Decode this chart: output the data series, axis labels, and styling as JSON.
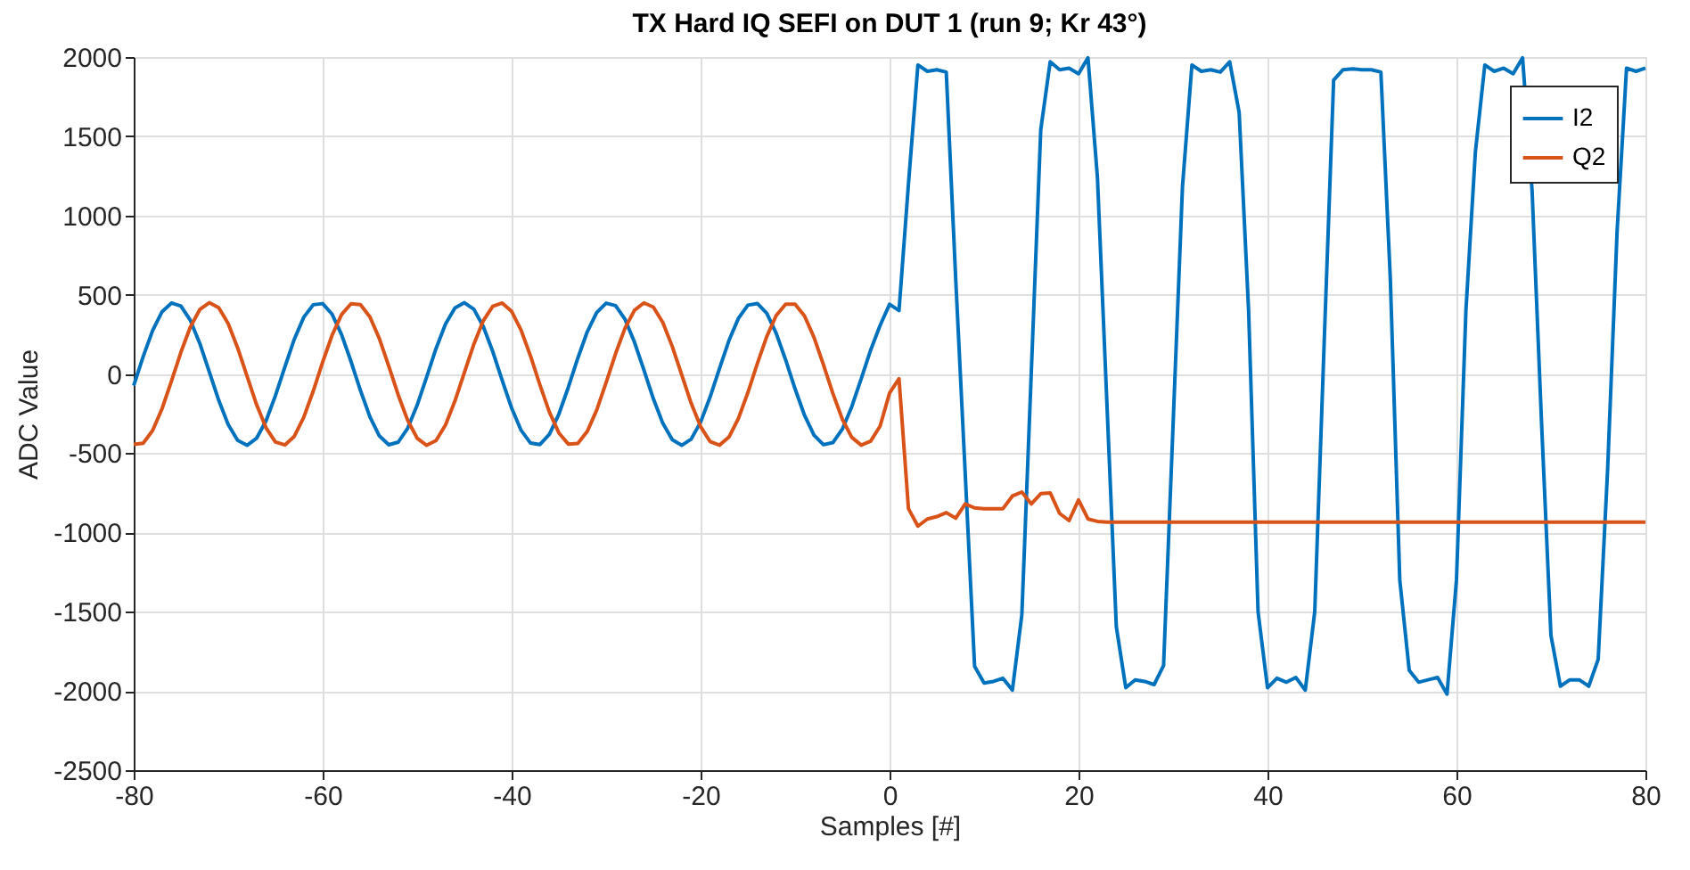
{
  "chart_data": {
    "type": "line",
    "title": "TX Hard IQ SEFI on DUT 1 (run 9; Kr 43°)",
    "xlabel": "Samples [#]",
    "ylabel": "ADC Value",
    "x": [
      -80,
      -79,
      -78,
      -77,
      -76,
      -75,
      -74,
      -73,
      -72,
      -71,
      -70,
      -69,
      -68,
      -67,
      -66,
      -65,
      -64,
      -63,
      -62,
      -61,
      -60,
      -59,
      -58,
      -57,
      -56,
      -55,
      -54,
      -53,
      -52,
      -51,
      -50,
      -49,
      -48,
      -47,
      -46,
      -45,
      -44,
      -43,
      -42,
      -41,
      -40,
      -39,
      -38,
      -37,
      -36,
      -35,
      -34,
      -33,
      -32,
      -31,
      -30,
      -29,
      -28,
      -27,
      -26,
      -25,
      -24,
      -23,
      -22,
      -21,
      -20,
      -19,
      -18,
      -17,
      -16,
      -15,
      -14,
      -13,
      -12,
      -11,
      -10,
      -9,
      -8,
      -7,
      -6,
      -5,
      -4,
      -3,
      -2,
      -1,
      0,
      1,
      2,
      3,
      4,
      5,
      6,
      7,
      8,
      9,
      10,
      11,
      12,
      13,
      14,
      15,
      16,
      17,
      18,
      19,
      20,
      21,
      22,
      23,
      24,
      25,
      26,
      27,
      28,
      29,
      30,
      31,
      32,
      33,
      34,
      35,
      36,
      37,
      38,
      39,
      40,
      41,
      42,
      43,
      44,
      45,
      46,
      47,
      48,
      49,
      50,
      51,
      52,
      53,
      54,
      55,
      56,
      57,
      58,
      59,
      60,
      61,
      62,
      63,
      64,
      65,
      66,
      67,
      68,
      69,
      70,
      71,
      72,
      73,
      74,
      75,
      76,
      77,
      78,
      79,
      80
    ],
    "series": [
      {
        "name": "I2",
        "color": "#0072bd",
        "values": [
          -74,
          109,
          274,
          393,
          448,
          428,
          338,
          192,
          14,
          -166,
          -319,
          -419,
          -450,
          -406,
          -296,
          -137,
          45,
          220,
          358,
          437,
          444,
          377,
          249,
          79,
          -104,
          -270,
          -391,
          -447,
          -430,
          -342,
          -197,
          -20,
          161,
          315,
          417,
          450,
          409,
          300,
          142,
          -40,
          -215,
          -355,
          -436,
          -445,
          -380,
          -253,
          -84,
          99,
          266,
          388,
          447,
          431,
          345,
          201,
          25,
          -156,
          -311,
          -415,
          -450,
          -411,
          -304,
          -146,
          35,
          211,
          351,
          434,
          445,
          383,
          257,
          89,
          -94,
          -261,
          -386,
          -446,
          -433,
          -348,
          -206,
          -30,
          151,
          307,
          440,
          400,
          1200,
          1950,
          1910,
          1920,
          1905,
          600,
          -620,
          -1845,
          -1950,
          -1940,
          -1920,
          -1995,
          -1520,
          10,
          1540,
          1970,
          1920,
          1930,
          1895,
          1995,
          1240,
          -180,
          -1595,
          -1980,
          -1930,
          -1940,
          -1960,
          -1840,
          -330,
          1180,
          1950,
          1910,
          1920,
          1905,
          1970,
          1650,
          400,
          -1500,
          -1980,
          -1920,
          -1945,
          -1915,
          -1995,
          -1500,
          200,
          1855,
          1920,
          1925,
          1920,
          1920,
          1905,
          600,
          -1300,
          -1870,
          -1945,
          -1930,
          -1915,
          -2020,
          -1300,
          400,
          1400,
          1950,
          1910,
          1930,
          1895,
          1995,
          1160,
          -300,
          -1650,
          -1970,
          -1930,
          -1930,
          -1970,
          -1800,
          -600,
          900,
          1930,
          1910,
          1930
        ]
      },
      {
        "name": "Q2",
        "color": "#d95319",
        "values": [
          -444,
          -437,
          -357,
          -219,
          -44,
          138,
          297,
          407,
          450,
          418,
          318,
          165,
          -15,
          -193,
          -339,
          -429,
          -448,
          -393,
          -273,
          -108,
          75,
          245,
          375,
          443,
          438,
          360,
          223,
          49,
          -133,
          -293,
          -405,
          -450,
          -420,
          -322,
          -170,
          10,
          188,
          336,
          427,
          448,
          395,
          277,
          113,
          -70,
          -241,
          -372,
          -442,
          -439,
          -363,
          -228,
          -54,
          128,
          289,
          402,
          449,
          422,
          325,
          174,
          -5,
          -184,
          -332,
          -426,
          -449,
          -398,
          -281,
          -118,
          65,
          236,
          369,
          441,
          440,
          366,
          232,
          59,
          -123,
          -285,
          -400,
          -449,
          -424,
          -329,
          -120,
          -30,
          -850,
          -960,
          -915,
          -900,
          -875,
          -910,
          -820,
          -845,
          -850,
          -850,
          -850,
          -770,
          -745,
          -820,
          -755,
          -750,
          -880,
          -925,
          -795,
          -915,
          -930,
          -935,
          -935,
          -935,
          -935,
          -935,
          -935,
          -935,
          -935,
          -935,
          -935,
          -935,
          -935,
          -935,
          -935,
          -935,
          -935,
          -935,
          -935,
          -935,
          -935,
          -935,
          -935,
          -935,
          -935,
          -935,
          -935,
          -935,
          -935,
          -935,
          -935,
          -935,
          -935,
          -935,
          -935,
          -935,
          -935,
          -935,
          -935,
          -935,
          -935,
          -935,
          -935,
          -935,
          -935,
          -935,
          -935,
          -935,
          -935,
          -935,
          -935,
          -935,
          -935,
          -935,
          -935,
          -935,
          -935,
          -935,
          -935
        ]
      }
    ],
    "xlim": [
      -80,
      80
    ],
    "xticks": [
      -80,
      -60,
      -40,
      -20,
      0,
      20,
      40,
      60,
      80
    ],
    "ylim": [
      -2500,
      2000
    ],
    "yticks": [
      -2500,
      -2000,
      -1500,
      -1000,
      -500,
      0,
      500,
      1000,
      1500,
      2000
    ],
    "grid": true,
    "legend": "top right",
    "marker": "none",
    "line_style": "solid"
  }
}
